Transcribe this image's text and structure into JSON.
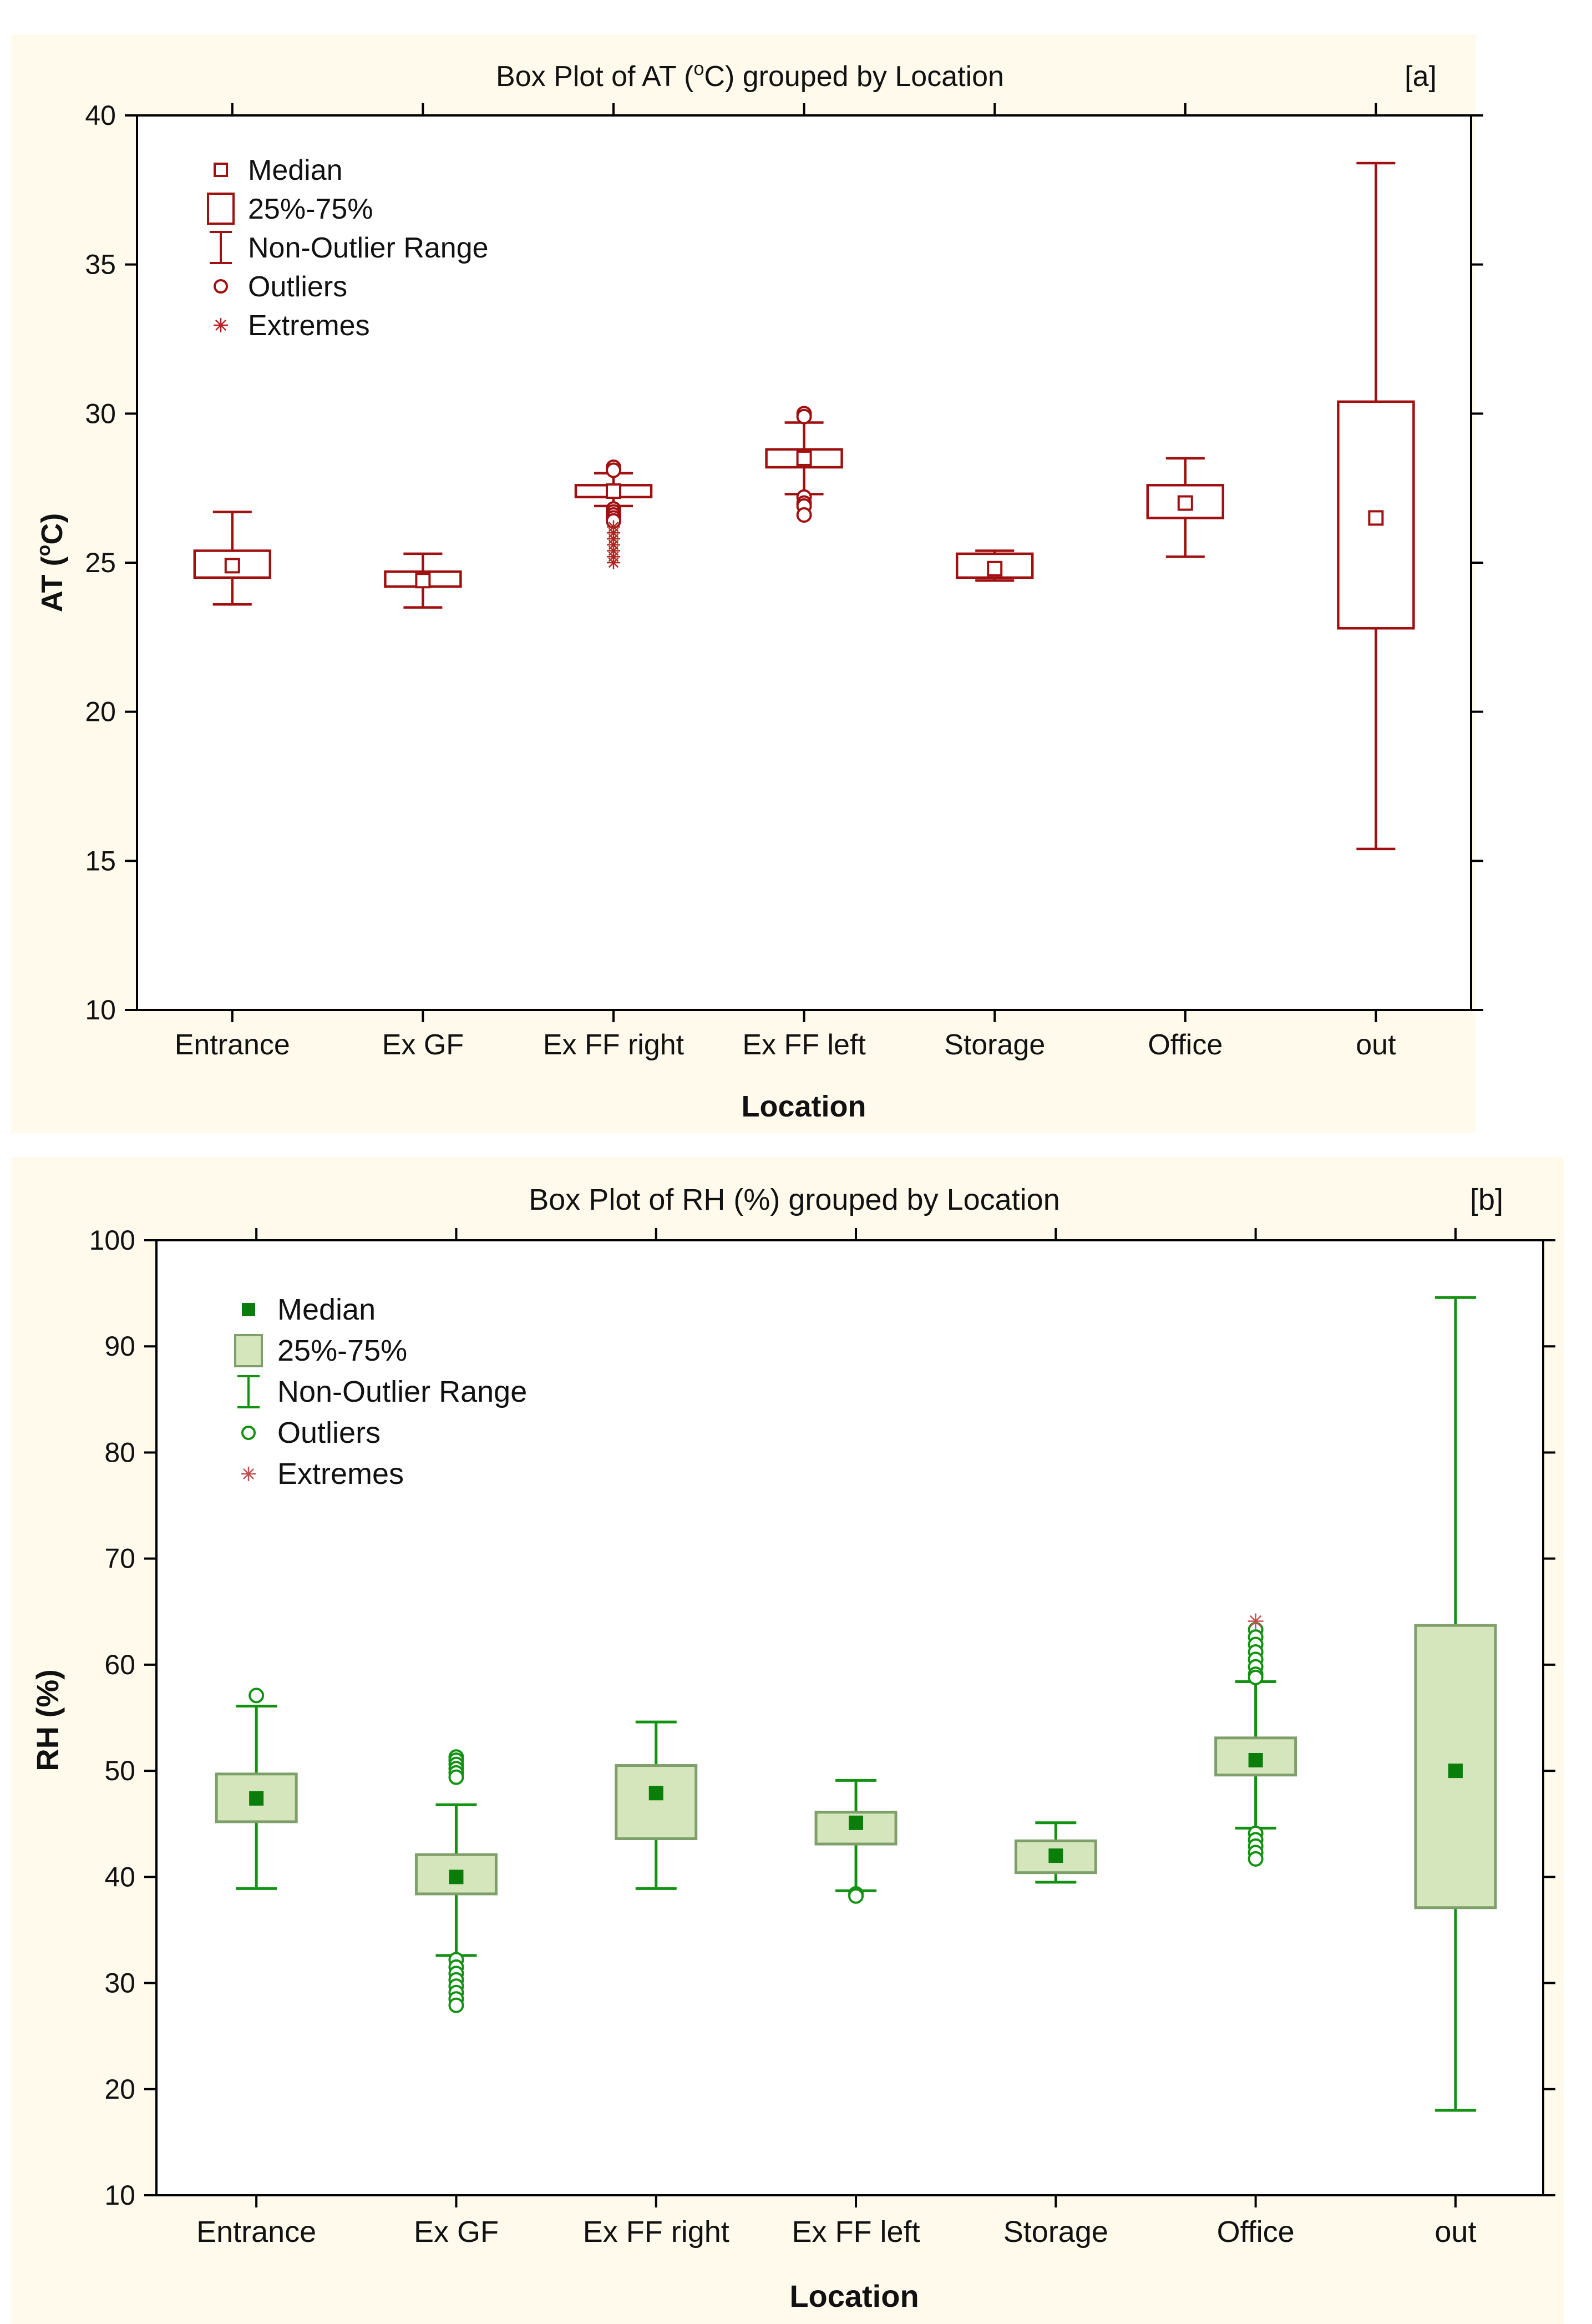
{
  "chart_data": [
    {
      "type": "box",
      "panel_label": "[a]",
      "title": "Box Plot of AT (°C) grouped by  Location",
      "title_prefix": "Box Plot of AT (",
      "title_sup": "o",
      "title_suffix": "C) grouped by  Location",
      "xlabel": "Location",
      "ylabel": "AT (°C)",
      "ylabel_prefix": "AT (",
      "ylabel_sup": "o",
      "ylabel_suffix": "C)",
      "ylim": [
        10,
        40
      ],
      "yticks": [
        10,
        15,
        20,
        25,
        30,
        35,
        40
      ],
      "style": "hollow-red",
      "colors": {
        "stroke": "#a01010",
        "extreme": "#b22222",
        "background": "#fffaeb"
      },
      "legend": {
        "position": "top-left",
        "items": [
          {
            "symbol": "median",
            "label": "Median"
          },
          {
            "symbol": "box",
            "label": "25%-75%"
          },
          {
            "symbol": "whisker",
            "label": "Non-Outlier Range"
          },
          {
            "symbol": "outlier",
            "label": "Outliers"
          },
          {
            "symbol": "extreme",
            "label": "Extremes"
          }
        ]
      },
      "categories": [
        "Entrance",
        "Ex GF",
        "Ex FF right",
        "Ex FF left",
        "Storage",
        "Office",
        "out"
      ],
      "boxes": [
        {
          "category": "Entrance",
          "min": 23.6,
          "q1": 24.5,
          "median": 24.9,
          "q3": 25.4,
          "max": 26.7,
          "outliers": [],
          "extremes": []
        },
        {
          "category": "Ex GF",
          "min": 23.5,
          "q1": 24.2,
          "median": 24.4,
          "q3": 24.7,
          "max": 25.3,
          "outliers": [],
          "extremes": []
        },
        {
          "category": "Ex FF right",
          "min": 26.9,
          "q1": 27.2,
          "median": 27.4,
          "q3": 27.6,
          "max": 28.0,
          "outliers": [
            28.2,
            28.1,
            26.8,
            26.7,
            26.6,
            26.5,
            26.4
          ],
          "extremes": [
            26.2,
            26.0,
            25.8,
            25.6,
            25.4,
            25.2,
            25.0
          ]
        },
        {
          "category": "Ex FF left",
          "min": 27.3,
          "q1": 28.2,
          "median": 28.5,
          "q3": 28.8,
          "max": 29.7,
          "outliers": [
            30.0,
            29.9,
            27.2,
            27.0,
            26.9,
            26.6
          ],
          "extremes": []
        },
        {
          "category": "Storage",
          "min": 24.4,
          "q1": 24.5,
          "median": 24.8,
          "q3": 25.3,
          "max": 25.4,
          "outliers": [],
          "extremes": []
        },
        {
          "category": "Office",
          "min": 25.2,
          "q1": 26.5,
          "median": 27.0,
          "q3": 27.6,
          "max": 28.5,
          "outliers": [],
          "extremes": []
        },
        {
          "category": "out",
          "min": 15.4,
          "q1": 22.8,
          "median": 26.5,
          "q3": 30.4,
          "max": 38.4,
          "outliers": [],
          "extremes": []
        }
      ]
    },
    {
      "type": "box",
      "panel_label": "[b]",
      "title": "Box Plot of RH (%) grouped by  Location",
      "xlabel": "Location",
      "ylabel": "RH (%)",
      "ylim": [
        10,
        100
      ],
      "yticks": [
        10,
        20,
        30,
        40,
        50,
        60,
        70,
        80,
        90,
        100
      ],
      "style": "filled-green",
      "colors": {
        "stroke": "#129112",
        "fill": "#d5e6bd",
        "boxStroke": "#7f9f6a",
        "median": "#0a7d0a",
        "extreme": "#c05050",
        "background": "#fffaeb"
      },
      "legend": {
        "position": "top-left",
        "items": [
          {
            "symbol": "median",
            "label": "Median"
          },
          {
            "symbol": "box",
            "label": "25%-75%"
          },
          {
            "symbol": "whisker",
            "label": "Non-Outlier Range"
          },
          {
            "symbol": "outlier",
            "label": "Outliers"
          },
          {
            "symbol": "extreme",
            "label": "Extremes"
          }
        ]
      },
      "categories": [
        "Entrance",
        "Ex GF",
        "Ex FF right",
        "Ex FF left",
        "Storage",
        "Office",
        "out"
      ],
      "boxes": [
        {
          "category": "Entrance",
          "min": 38.9,
          "q1": 45.2,
          "median": 47.4,
          "q3": 49.7,
          "max": 56.1,
          "outliers": [
            57.1
          ],
          "extremes": []
        },
        {
          "category": "Ex GF",
          "min": 32.6,
          "q1": 38.4,
          "median": 40.0,
          "q3": 42.1,
          "max": 46.8,
          "outliers": [
            51.3,
            51.0,
            50.6,
            50.2,
            49.8,
            49.4,
            32.2,
            31.5,
            30.9,
            30.3,
            29.7,
            29.1,
            28.5,
            27.9
          ],
          "extremes": []
        },
        {
          "category": "Ex FF right",
          "min": 38.9,
          "q1": 43.6,
          "median": 47.9,
          "q3": 50.5,
          "max": 54.6,
          "outliers": [],
          "extremes": []
        },
        {
          "category": "Ex FF left",
          "min": 38.7,
          "q1": 43.1,
          "median": 45.1,
          "q3": 46.1,
          "max": 49.1,
          "outliers": [
            38.4,
            38.2
          ],
          "extremes": []
        },
        {
          "category": "Storage",
          "min": 39.5,
          "q1": 40.4,
          "median": 42.0,
          "q3": 43.4,
          "max": 45.1,
          "outliers": [],
          "extremes": []
        },
        {
          "category": "Office",
          "min": 44.6,
          "q1": 49.6,
          "median": 51.0,
          "q3": 53.1,
          "max": 58.4,
          "outliers": [
            63.3,
            62.6,
            61.9,
            61.2,
            60.5,
            59.8,
            59.1,
            58.8,
            44.1,
            43.5,
            42.9,
            42.3,
            41.7
          ],
          "extremes": [
            64.1
          ]
        },
        {
          "category": "out",
          "min": 18.0,
          "q1": 37.1,
          "median": 50.0,
          "q3": 63.7,
          "max": 94.6,
          "outliers": [],
          "extremes": []
        }
      ]
    }
  ]
}
